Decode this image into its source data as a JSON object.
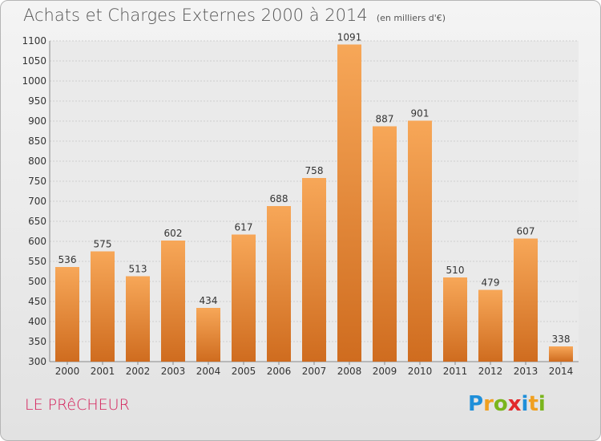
{
  "title": "Achats et Charges Externes 2000 à 2014",
  "subtitle": "(en milliers d'€)",
  "commune": "LE PRêCHEUR",
  "brand": {
    "name": "Proxiti",
    "letters": [
      "P",
      "r",
      "o",
      "x",
      "i",
      "t",
      "i"
    ],
    "colors": [
      "#1f8fd9",
      "#f0a020",
      "#7ab51d",
      "#e2282b",
      "#1f8fd9",
      "#f0a020",
      "#7ab51d"
    ]
  },
  "colors": {
    "bar_top": "#f7a758",
    "bar_bottom": "#cf6c1f",
    "title": "#555555",
    "commune": "#d4205a"
  },
  "chart_data": {
    "type": "bar",
    "title": "Achats et Charges Externes 2000 à 2014",
    "subtitle": "(en milliers d'€)",
    "categories": [
      "2000",
      "2001",
      "2002",
      "2003",
      "2004",
      "2005",
      "2006",
      "2007",
      "2008",
      "2009",
      "2010",
      "2011",
      "2012",
      "2013",
      "2014"
    ],
    "values": [
      536,
      575,
      513,
      602,
      434,
      617,
      688,
      758,
      1091,
      887,
      901,
      510,
      479,
      607,
      338
    ],
    "ylim": [
      300,
      1100
    ],
    "yticks": [
      300,
      350,
      400,
      450,
      500,
      550,
      600,
      650,
      700,
      750,
      800,
      850,
      900,
      950,
      1000,
      1050,
      1100
    ],
    "grid": true,
    "data_labels": true
  }
}
